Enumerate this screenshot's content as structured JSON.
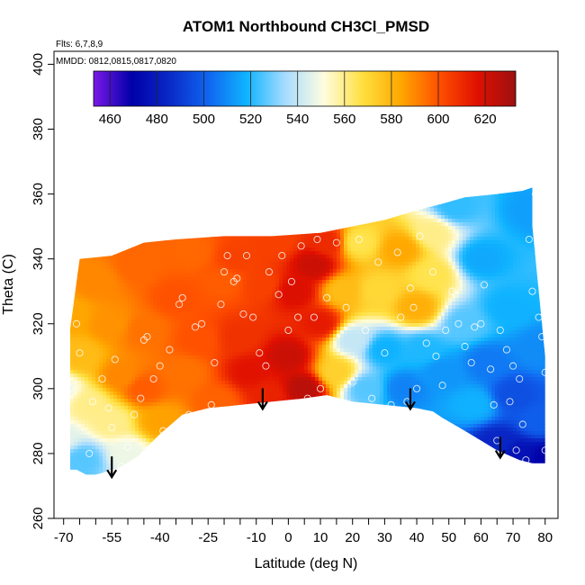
{
  "chart_data": {
    "type": "heatmap",
    "title": "ATOM1 Northbound CH3Cl_PMSD",
    "flights_label": "Flts: 6,7,8,9",
    "dates_label": "MMDD: 0812,0815,0817,0820",
    "xlabel": "Latitude (deg N)",
    "ylabel": "Theta (C)",
    "xlim": [
      -73,
      84
    ],
    "ylim": [
      260,
      404
    ],
    "x_ticks": [
      -70,
      -55,
      -40,
      -25,
      -10,
      0,
      10,
      20,
      30,
      40,
      50,
      60,
      70,
      80
    ],
    "x_tick_labels": [
      "-70",
      "-55",
      "-40",
      "-25",
      "-10",
      "0",
      "10",
      "20",
      "30",
      "40",
      "50",
      "60",
      "70",
      "80"
    ],
    "x_minor_ticks": [
      -65,
      -60,
      -50,
      -45,
      -35,
      -30,
      -20,
      -15,
      -5,
      5,
      15,
      25,
      35,
      45,
      55,
      65,
      75
    ],
    "y_ticks": [
      260,
      280,
      300,
      320,
      340,
      360,
      380,
      400
    ],
    "y_tick_labels": [
      "260",
      "280",
      "300",
      "320",
      "340",
      "360",
      "380",
      "400"
    ],
    "colorbar": {
      "range": [
        453,
        633
      ],
      "ticks": [
        460,
        480,
        500,
        520,
        540,
        560,
        580,
        600,
        620
      ],
      "tick_labels": [
        "460",
        "480",
        "500",
        "520",
        "540",
        "560",
        "580",
        "600",
        "620"
      ],
      "palette": [
        "#7b18e6",
        "#0000a8",
        "#0a2ac8",
        "#1066f0",
        "#10b4ff",
        "#a8dcff",
        "#fffde0",
        "#ffe040",
        "#ffa800",
        "#ff5000",
        "#e01000",
        "#9c1010"
      ]
    },
    "field_nodes": [
      {
        "lat": -71,
        "theta": 300,
        "value": 548
      },
      {
        "lat": -71,
        "theta": 285,
        "value": 546
      },
      {
        "lat": -68,
        "theta": 323,
        "value": 584
      },
      {
        "lat": -65,
        "theta": 310,
        "value": 578
      },
      {
        "lat": -64,
        "theta": 278,
        "value": 526
      },
      {
        "lat": -62,
        "theta": 295,
        "value": 560
      },
      {
        "lat": -60,
        "theta": 333,
        "value": 590
      },
      {
        "lat": -55,
        "theta": 290,
        "value": 560
      },
      {
        "lat": -55,
        "theta": 320,
        "value": 588
      },
      {
        "lat": -52,
        "theta": 304,
        "value": 590
      },
      {
        "lat": -50,
        "theta": 280,
        "value": 548
      },
      {
        "lat": -47,
        "theta": 338,
        "value": 596
      },
      {
        "lat": -45,
        "theta": 300,
        "value": 598
      },
      {
        "lat": -45,
        "theta": 318,
        "value": 594
      },
      {
        "lat": -40,
        "theta": 290,
        "value": 585
      },
      {
        "lat": -35,
        "theta": 328,
        "value": 600
      },
      {
        "lat": -32,
        "theta": 305,
        "value": 594
      },
      {
        "lat": -30,
        "theta": 342,
        "value": 596
      },
      {
        "lat": -28,
        "theta": 315,
        "value": 600
      },
      {
        "lat": -22,
        "theta": 296,
        "value": 597
      },
      {
        "lat": -20,
        "theta": 333,
        "value": 598
      },
      {
        "lat": -16,
        "theta": 340,
        "value": 604
      },
      {
        "lat": -15,
        "theta": 316,
        "value": 608
      },
      {
        "lat": -12,
        "theta": 305,
        "value": 616
      },
      {
        "lat": -8,
        "theta": 332,
        "value": 604
      },
      {
        "lat": -6,
        "theta": 298,
        "value": 612
      },
      {
        "lat": -4,
        "theta": 345,
        "value": 604
      },
      {
        "lat": 0,
        "theta": 310,
        "value": 622
      },
      {
        "lat": 2,
        "theta": 330,
        "value": 618
      },
      {
        "lat": 5,
        "theta": 300,
        "value": 626
      },
      {
        "lat": 8,
        "theta": 338,
        "value": 622
      },
      {
        "lat": 10,
        "theta": 320,
        "value": 614
      },
      {
        "lat": 12,
        "theta": 345,
        "value": 610
      },
      {
        "lat": 15,
        "theta": 305,
        "value": 572
      },
      {
        "lat": 17,
        "theta": 330,
        "value": 578
      },
      {
        "lat": 20,
        "theta": 315,
        "value": 540
      },
      {
        "lat": 22,
        "theta": 345,
        "value": 566
      },
      {
        "lat": 24,
        "theta": 300,
        "value": 526
      },
      {
        "lat": 28,
        "theta": 330,
        "value": 570
      },
      {
        "lat": 30,
        "theta": 312,
        "value": 518
      },
      {
        "lat": 35,
        "theta": 343,
        "value": 584
      },
      {
        "lat": 36,
        "theta": 300,
        "value": 508
      },
      {
        "lat": 40,
        "theta": 325,
        "value": 582
      },
      {
        "lat": 42,
        "theta": 312,
        "value": 520
      },
      {
        "lat": 45,
        "theta": 348,
        "value": 560
      },
      {
        "lat": 45,
        "theta": 335,
        "value": 566
      },
      {
        "lat": 48,
        "theta": 305,
        "value": 512
      },
      {
        "lat": 52,
        "theta": 356,
        "value": 522
      },
      {
        "lat": 55,
        "theta": 320,
        "value": 526
      },
      {
        "lat": 58,
        "theta": 295,
        "value": 518
      },
      {
        "lat": 60,
        "theta": 340,
        "value": 516
      },
      {
        "lat": 62,
        "theta": 308,
        "value": 506
      },
      {
        "lat": 65,
        "theta": 283,
        "value": 484
      },
      {
        "lat": 68,
        "theta": 325,
        "value": 518
      },
      {
        "lat": 70,
        "theta": 298,
        "value": 496
      },
      {
        "lat": 72,
        "theta": 279,
        "value": 476
      },
      {
        "lat": 76,
        "theta": 355,
        "value": 514
      },
      {
        "lat": 78,
        "theta": 312,
        "value": 510
      },
      {
        "lat": 78,
        "theta": 290,
        "value": 500
      },
      {
        "lat": 80,
        "theta": 278,
        "value": 470
      }
    ],
    "top_edge": [
      {
        "lat": -70,
        "theta": 310
      },
      {
        "lat": -68,
        "theta": 318
      },
      {
        "lat": -65,
        "theta": 340
      },
      {
        "lat": -55,
        "theta": 341
      },
      {
        "lat": -45,
        "theta": 345
      },
      {
        "lat": -35,
        "theta": 346
      },
      {
        "lat": -20,
        "theta": 347
      },
      {
        "lat": -5,
        "theta": 347
      },
      {
        "lat": 10,
        "theta": 348
      },
      {
        "lat": 20,
        "theta": 350
      },
      {
        "lat": 30,
        "theta": 352
      },
      {
        "lat": 40,
        "theta": 355
      },
      {
        "lat": 48,
        "theta": 357
      },
      {
        "lat": 55,
        "theta": 359
      },
      {
        "lat": 65,
        "theta": 360
      },
      {
        "lat": 73,
        "theta": 361
      },
      {
        "lat": 76,
        "theta": 362
      },
      {
        "lat": 76,
        "theta": 350
      },
      {
        "lat": 78,
        "theta": 330
      },
      {
        "lat": 80,
        "theta": 310
      }
    ],
    "bottom_edge": [
      {
        "lat": 80,
        "theta": 277
      },
      {
        "lat": 76,
        "theta": 277
      },
      {
        "lat": 72,
        "theta": 278
      },
      {
        "lat": 65,
        "theta": 281
      },
      {
        "lat": 55,
        "theta": 287
      },
      {
        "lat": 48,
        "theta": 291
      },
      {
        "lat": 45,
        "theta": 293
      },
      {
        "lat": 40,
        "theta": 294
      },
      {
        "lat": 30,
        "theta": 295
      },
      {
        "lat": 20,
        "theta": 296
      },
      {
        "lat": 12,
        "theta": 298
      },
      {
        "lat": 5,
        "theta": 297
      },
      {
        "lat": -5,
        "theta": 296
      },
      {
        "lat": -15,
        "theta": 295
      },
      {
        "lat": -25,
        "theta": 294
      },
      {
        "lat": -33,
        "theta": 292
      },
      {
        "lat": -40,
        "theta": 286
      },
      {
        "lat": -47,
        "theta": 279
      },
      {
        "lat": -52,
        "theta": 276
      },
      {
        "lat": -58,
        "theta": 274
      },
      {
        "lat": -62,
        "theta": 273
      },
      {
        "lat": -66,
        "theta": 275
      },
      {
        "lat": -70,
        "theta": 275
      }
    ],
    "samples": [
      [
        -70,
        312
      ],
      [
        -69,
        305
      ],
      [
        -70,
        295
      ],
      [
        -70,
        289
      ],
      [
        -68,
        300
      ],
      [
        -66,
        320
      ],
      [
        -65,
        311
      ],
      [
        -62,
        280
      ],
      [
        -61,
        296
      ],
      [
        -58,
        303
      ],
      [
        -56,
        294
      ],
      [
        -55,
        288
      ],
      [
        -54,
        309
      ],
      [
        -52,
        276
      ],
      [
        -50,
        282
      ],
      [
        -48,
        292
      ],
      [
        -46,
        297
      ],
      [
        -45,
        315
      ],
      [
        -44,
        316
      ],
      [
        -42,
        303
      ],
      [
        -40,
        307
      ],
      [
        -39,
        287
      ],
      [
        -37,
        312
      ],
      [
        -34,
        326
      ],
      [
        -33,
        328
      ],
      [
        -31,
        292
      ],
      [
        -29,
        319
      ],
      [
        -27,
        320
      ],
      [
        -24,
        295
      ],
      [
        -23,
        308
      ],
      [
        -21,
        326
      ],
      [
        -20,
        336
      ],
      [
        -19,
        341
      ],
      [
        -17,
        333
      ],
      [
        -16,
        334
      ],
      [
        -14,
        323
      ],
      [
        -13,
        341
      ],
      [
        -11,
        322
      ],
      [
        -9,
        311
      ],
      [
        -7,
        307
      ],
      [
        -6,
        336
      ],
      [
        -5,
        294
      ],
      [
        -3,
        329
      ],
      [
        -2,
        341
      ],
      [
        0,
        318
      ],
      [
        1,
        333
      ],
      [
        3,
        322
      ],
      [
        4,
        344
      ],
      [
        6,
        297
      ],
      [
        8,
        322
      ],
      [
        9,
        346
      ],
      [
        10,
        300
      ],
      [
        12,
        328
      ],
      [
        15,
        345
      ],
      [
        18,
        325
      ],
      [
        20,
        302
      ],
      [
        22,
        346
      ],
      [
        24,
        318
      ],
      [
        26,
        297
      ],
      [
        28,
        339
      ],
      [
        30,
        311
      ],
      [
        32,
        295
      ],
      [
        34,
        342
      ],
      [
        35,
        322
      ],
      [
        37,
        296
      ],
      [
        38,
        331
      ],
      [
        39,
        325
      ],
      [
        40,
        300
      ],
      [
        41,
        347
      ],
      [
        43,
        314
      ],
      [
        45,
        336
      ],
      [
        46,
        310
      ],
      [
        48,
        301
      ],
      [
        49,
        318
      ],
      [
        51,
        330
      ],
      [
        53,
        320
      ],
      [
        55,
        313
      ],
      [
        57,
        308
      ],
      [
        58,
        319
      ],
      [
        60,
        320
      ],
      [
        61,
        332
      ],
      [
        63,
        306
      ],
      [
        64,
        295
      ],
      [
        65,
        284
      ],
      [
        66,
        318
      ],
      [
        68,
        312
      ],
      [
        69,
        296
      ],
      [
        70,
        307
      ],
      [
        71,
        281
      ],
      [
        72,
        303
      ],
      [
        73,
        289
      ],
      [
        74,
        278
      ],
      [
        75,
        346
      ],
      [
        76,
        330
      ],
      [
        77,
        360
      ],
      [
        78,
        322
      ],
      [
        79,
        316
      ],
      [
        80,
        305
      ],
      [
        80,
        281
      ]
    ],
    "arrows": [
      {
        "lat": -55,
        "theta": 273
      },
      {
        "lat": -8,
        "theta": 294
      },
      {
        "lat": 38,
        "theta": 294
      },
      {
        "lat": 66,
        "theta": 279
      }
    ]
  }
}
